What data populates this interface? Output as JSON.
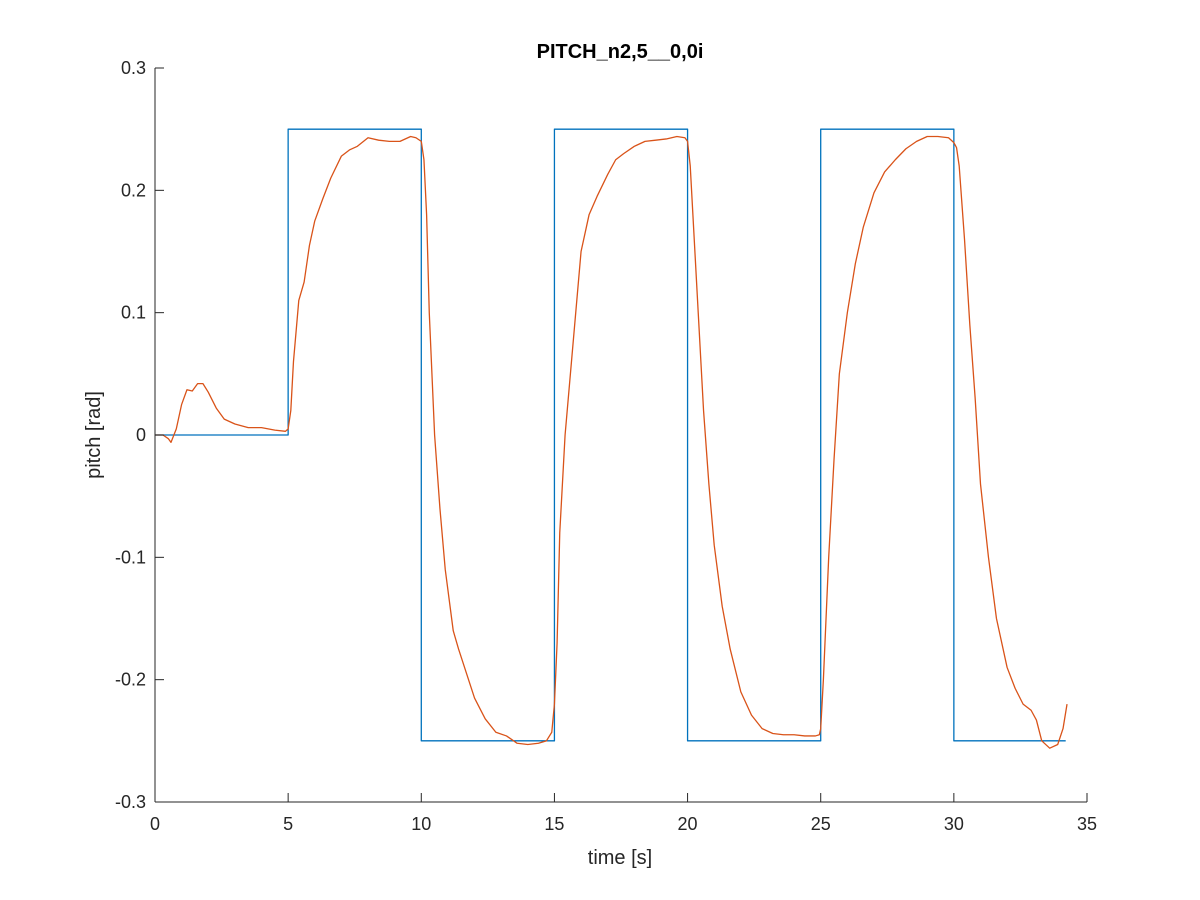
{
  "chart_data": {
    "type": "line",
    "title": "PITCH_n2,5__0,0i",
    "xlabel": "time [s]",
    "ylabel": "pitch [rad]",
    "xlim": [
      0,
      35
    ],
    "ylim": [
      -0.3,
      0.3
    ],
    "xticks": [
      0,
      5,
      10,
      15,
      20,
      25,
      30,
      35
    ],
    "yticks": [
      -0.3,
      -0.2,
      -0.1,
      0,
      0.1,
      0.2,
      0.3
    ],
    "xtick_labels": [
      "0",
      "5",
      "10",
      "15",
      "20",
      "25",
      "30",
      "35"
    ],
    "ytick_labels": [
      "-0.3",
      "-0.2",
      "-0.1",
      "0",
      "0.1",
      "0.2",
      "0.3"
    ],
    "grid": false,
    "series": [
      {
        "color": "#0072BD",
        "x": [
          0,
          5,
          5,
          10,
          10,
          15,
          15,
          20,
          20,
          25,
          25,
          30,
          30,
          34.2
        ],
        "y": [
          0,
          0,
          0.25,
          0.25,
          -0.25,
          -0.25,
          0.25,
          0.25,
          -0.25,
          -0.25,
          0.25,
          0.25,
          -0.25,
          -0.25
        ]
      },
      {
        "color": "#D95319",
        "x": [
          0,
          0.3,
          0.5,
          0.6,
          0.8,
          1.0,
          1.2,
          1.4,
          1.6,
          1.8,
          2.0,
          2.3,
          2.6,
          3.0,
          3.5,
          4.0,
          4.5,
          4.9,
          5.0,
          5.1,
          5.2,
          5.4,
          5.6,
          5.8,
          6.0,
          6.3,
          6.6,
          7.0,
          7.3,
          7.6,
          8.0,
          8.4,
          8.8,
          9.2,
          9.6,
          9.8,
          10.0,
          10.1,
          10.2,
          10.3,
          10.5,
          10.7,
          10.9,
          11.2,
          11.4,
          11.7,
          12.0,
          12.4,
          12.8,
          13.2,
          13.6,
          14.0,
          14.4,
          14.7,
          14.9,
          15.0,
          15.1,
          15.2,
          15.4,
          15.6,
          15.8,
          16.0,
          16.3,
          16.6,
          17.0,
          17.3,
          17.6,
          18.0,
          18.4,
          18.8,
          19.2,
          19.6,
          19.9,
          20.0,
          20.1,
          20.2,
          20.4,
          20.6,
          20.8,
          21.0,
          21.3,
          21.6,
          22.0,
          22.4,
          22.8,
          23.2,
          23.6,
          24.0,
          24.4,
          24.8,
          24.95,
          25.0,
          25.1,
          25.3,
          25.5,
          25.7,
          26.0,
          26.3,
          26.6,
          27.0,
          27.4,
          27.8,
          28.2,
          28.6,
          29.0,
          29.4,
          29.8,
          30.0,
          30.1,
          30.2,
          30.4,
          30.6,
          30.8,
          31.0,
          31.3,
          31.6,
          32.0,
          32.3,
          32.6,
          32.9,
          33.1,
          33.3,
          33.6,
          33.9,
          34.1,
          34.25
        ],
        "y": [
          0.0,
          0.0,
          -0.003,
          -0.006,
          0.005,
          0.025,
          0.037,
          0.036,
          0.042,
          0.042,
          0.035,
          0.022,
          0.013,
          0.009,
          0.006,
          0.006,
          0.004,
          0.003,
          0.005,
          0.02,
          0.06,
          0.11,
          0.125,
          0.155,
          0.175,
          0.193,
          0.21,
          0.228,
          0.233,
          0.236,
          0.243,
          0.241,
          0.24,
          0.24,
          0.244,
          0.243,
          0.24,
          0.225,
          0.18,
          0.1,
          0.0,
          -0.06,
          -0.11,
          -0.16,
          -0.175,
          -0.195,
          -0.215,
          -0.232,
          -0.243,
          -0.246,
          -0.252,
          -0.253,
          -0.252,
          -0.25,
          -0.243,
          -0.22,
          -0.17,
          -0.08,
          0.0,
          0.05,
          0.1,
          0.15,
          0.18,
          0.195,
          0.213,
          0.225,
          0.23,
          0.236,
          0.24,
          0.241,
          0.242,
          0.244,
          0.243,
          0.24,
          0.22,
          0.18,
          0.1,
          0.02,
          -0.04,
          -0.09,
          -0.14,
          -0.175,
          -0.21,
          -0.229,
          -0.24,
          -0.244,
          -0.245,
          -0.245,
          -0.246,
          -0.246,
          -0.245,
          -0.24,
          -0.2,
          -0.1,
          -0.02,
          0.05,
          0.1,
          0.14,
          0.17,
          0.198,
          0.215,
          0.225,
          0.234,
          0.24,
          0.244,
          0.244,
          0.243,
          0.239,
          0.235,
          0.22,
          0.16,
          0.09,
          0.03,
          -0.04,
          -0.1,
          -0.15,
          -0.19,
          -0.207,
          -0.22,
          -0.225,
          -0.233,
          -0.25,
          -0.256,
          -0.253,
          -0.24,
          -0.22
        ]
      }
    ]
  }
}
